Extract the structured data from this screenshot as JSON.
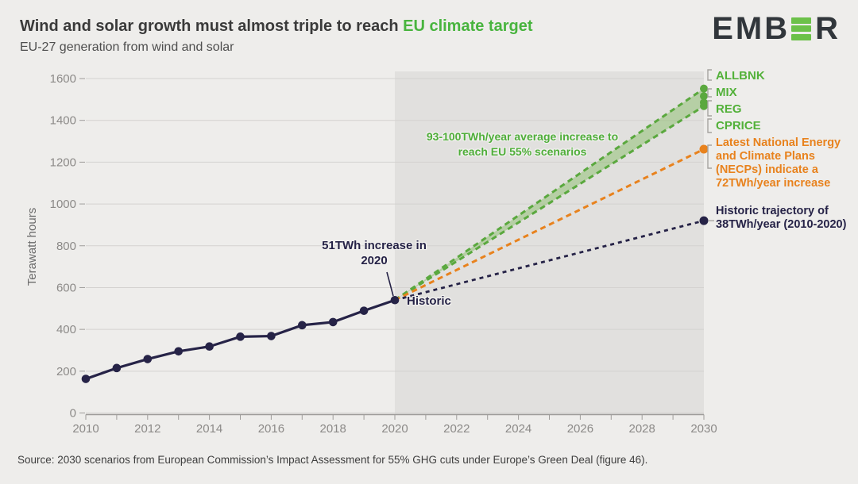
{
  "header": {
    "title_main": "Wind and solar growth must almost triple to reach ",
    "title_highlight": "EU climate target",
    "subtitle": "EU-27 generation from wind and solar",
    "logo": {
      "part1": "EMB",
      "part2": "R",
      "icon": "ember-logo-green-e"
    }
  },
  "chart_data": {
    "type": "line",
    "title": "Wind and solar growth must almost triple to reach EU climate target",
    "subtitle": "EU-27 generation from wind and solar",
    "ylabel": "Terawatt hours",
    "xlabel": "",
    "xlim": [
      2010,
      2030
    ],
    "ylim": [
      0,
      1600
    ],
    "yticks": [
      0,
      200,
      400,
      600,
      800,
      1000,
      1200,
      1400,
      1600
    ],
    "xtick_labels": [
      2010,
      2012,
      2014,
      2016,
      2018,
      2020,
      2022,
      2024,
      2026,
      2028,
      2030
    ],
    "grid": "horizontal",
    "forecast_region": [
      2020,
      2030
    ],
    "historic": {
      "years": [
        2010,
        2011,
        2012,
        2013,
        2014,
        2015,
        2016,
        2017,
        2018,
        2019,
        2020
      ],
      "values": [
        163,
        215,
        258,
        295,
        318,
        365,
        368,
        420,
        435,
        489,
        540
      ]
    },
    "scenario_band": {
      "start_year": 2020,
      "start_value": 540,
      "end_year": 2030,
      "top": 1552,
      "bottom": 1468
    },
    "scenarios": [
      {
        "name": "ALLBNK",
        "value_2030": 1552
      },
      {
        "name": "MIX",
        "value_2030": 1516
      },
      {
        "name": "REG",
        "value_2030": 1485
      },
      {
        "name": "CPRICE",
        "value_2030": 1468
      }
    ],
    "necp": {
      "start": [
        2020,
        540
      ],
      "end": [
        2030,
        1262
      ]
    },
    "historic_trajectory": {
      "start": [
        2020,
        540
      ],
      "end": [
        2030,
        920
      ]
    }
  },
  "annotations": {
    "increase_2020": [
      "51TWh increase in",
      "2020"
    ],
    "historic_point_label": "Historic",
    "green_note": [
      "93-100TWh/year average increase to",
      "reach EU 55% scenarios"
    ],
    "necp_note": "Latest National Energy and Climate Plans (NECPs) indicate a 72TWh/year increase",
    "historic_trajectory_note": "Historic trajectory of 38TWh/year (2010-2020)"
  },
  "source": "Source: 2030 scenarios from European Commission’s Impact Assessment for 55% GHG cuts under Europe’s Green Deal (figure 46).",
  "colors": {
    "green_text": "#53b13a",
    "band_edge": "#5aa83e",
    "band_fill": "rgba(130,186,95,0.45)",
    "orange": "#e8821d",
    "navy": "#262347",
    "background": "#eeedeb",
    "forecast_shade": "#e1e0de",
    "gridline": "#d4d2d0",
    "axis": "#9e9c9a",
    "tick_text": "#8c8a88",
    "ylabel_text": "#6b6b6b",
    "bracket": "#a5a3a0"
  }
}
